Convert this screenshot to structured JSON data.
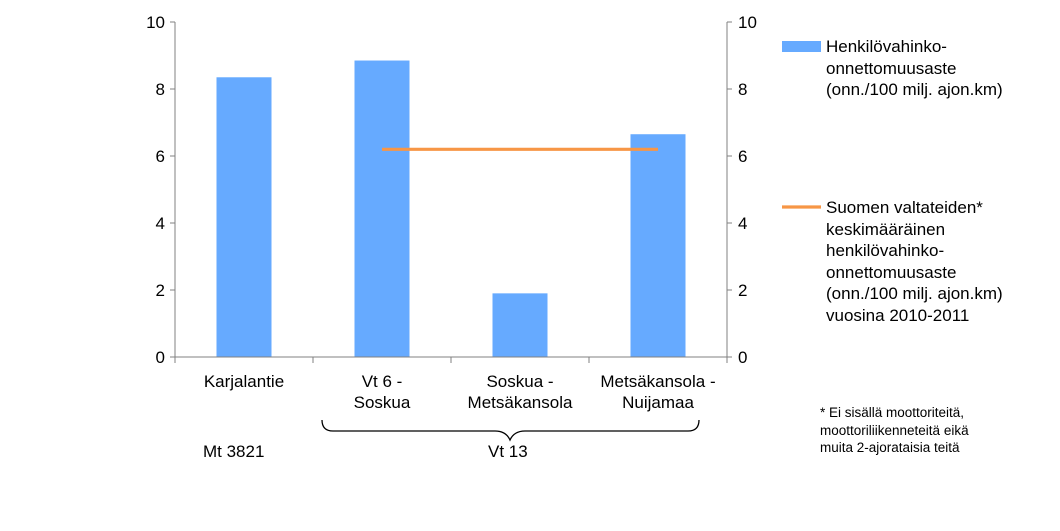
{
  "chart_data": {
    "type": "bar",
    "categories": [
      "Karjalantie",
      "Vt 6 -\nSoskua",
      "Soskua -\nMetsäkansola",
      "Metsäkansola -\nNuijamaa"
    ],
    "series": [
      {
        "name": "Henkilövahinko-\nonnettomuusaste\n(onn./100 milj. ajon.km)",
        "type": "bar",
        "color": "#66aaff",
        "values": [
          8.35,
          8.85,
          1.9,
          6.65
        ]
      },
      {
        "name": "Suomen valtateiden*\nkeskimääräinen\nhenkilövahinko-\nonnettomuusaste\n(onn./100 milj. ajon.km)\nvuosina 2010-2011",
        "type": "line",
        "color": "#f79646",
        "values": [
          null,
          6.2,
          6.2,
          6.2
        ]
      }
    ],
    "ylim": [
      0,
      10
    ],
    "y2lim": [
      0,
      10
    ],
    "yticks": [
      "0",
      "2",
      "4",
      "6",
      "8",
      "10"
    ],
    "grid": false,
    "legend": "right",
    "groups": [
      {
        "label": "Mt 3821",
        "categories": [
          0
        ]
      },
      {
        "label": "Vt 13",
        "categories": [
          1,
          2,
          3
        ]
      }
    ],
    "footnote": "* Ei sisällä moottoriteitä,\nmoottoriliikenneteitä eikä\nmuita 2-ajorataisia teitä"
  }
}
